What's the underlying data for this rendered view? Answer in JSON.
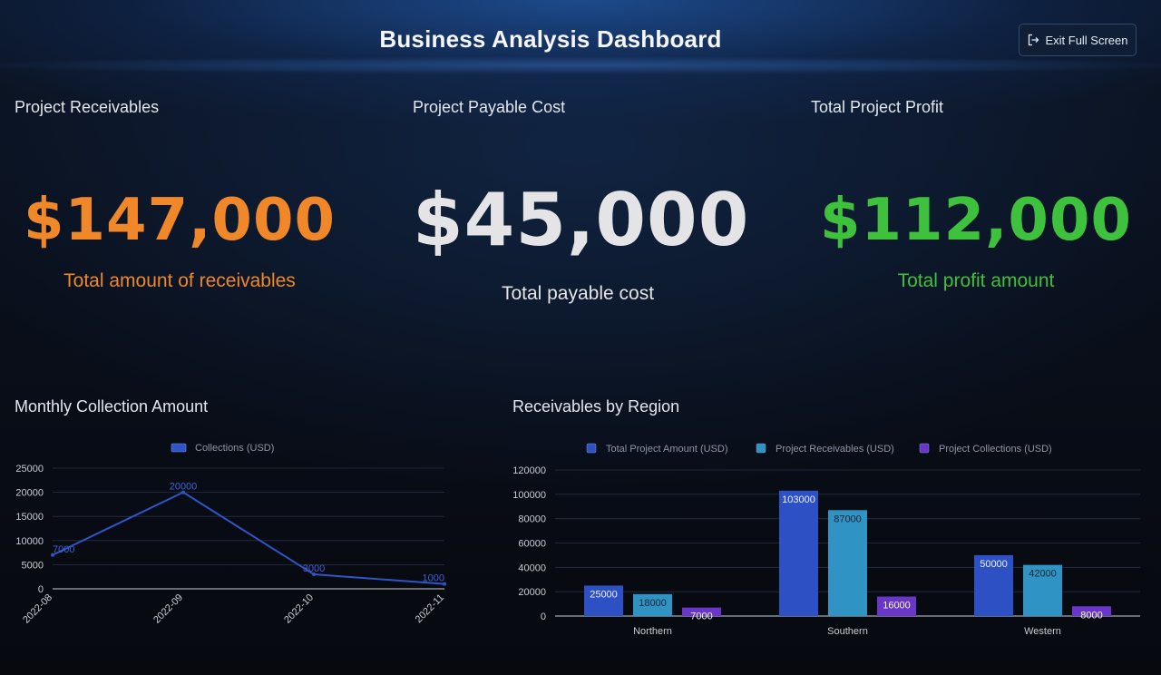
{
  "header": {
    "title": "Business Analysis Dashboard",
    "exit_button_label": "Exit Full Screen",
    "exit_icon": "exit-fullscreen-icon"
  },
  "kpis": [
    {
      "label": "Project Receivables",
      "value": "$147,000",
      "caption": "Total amount of receivables",
      "color": "#f0882a"
    },
    {
      "label": "Project Payable Cost",
      "value": "$45,000",
      "caption": "Total payable cost",
      "color": "#e4e4e6"
    },
    {
      "label": "Total Project Profit",
      "value": "$112,000",
      "caption": "Total profit amount",
      "color": "#3ec13c"
    }
  ],
  "charts": {
    "monthly": {
      "section_title": "Monthly Collection Amount"
    },
    "region": {
      "section_title": "Receivables by Region"
    }
  },
  "chart_data": [
    {
      "type": "line",
      "title": "Monthly Collection Amount",
      "x": [
        "2022-08",
        "2022-09",
        "2022-10",
        "2022-11"
      ],
      "series": [
        {
          "name": "Collections (USD)",
          "values": [
            7000,
            20000,
            3000,
            1000
          ],
          "color": "#2f55c8"
        }
      ],
      "ylim": [
        0,
        25000
      ],
      "yticks": [
        0,
        5000,
        10000,
        15000,
        20000,
        25000
      ],
      "legend": "top-center",
      "grid": true,
      "data_labels": true
    },
    {
      "type": "bar",
      "title": "Receivables by Region",
      "categories": [
        "Northern",
        "Southern",
        "Western"
      ],
      "series": [
        {
          "name": "Total Project Amount (USD)",
          "values": [
            25000,
            103000,
            50000
          ],
          "color": "#2d51c5"
        },
        {
          "name": "Project Receivables (USD)",
          "values": [
            18000,
            87000,
            42000
          ],
          "color": "#2f93c4"
        },
        {
          "name": "Project Collections (USD)",
          "values": [
            7000,
            16000,
            8000
          ],
          "color": "#6a35c9"
        }
      ],
      "ylim": [
        0,
        120000
      ],
      "yticks": [
        0,
        20000,
        40000,
        60000,
        80000,
        100000,
        120000
      ],
      "legend": "top-center",
      "grid": true,
      "data_labels": true
    }
  ]
}
